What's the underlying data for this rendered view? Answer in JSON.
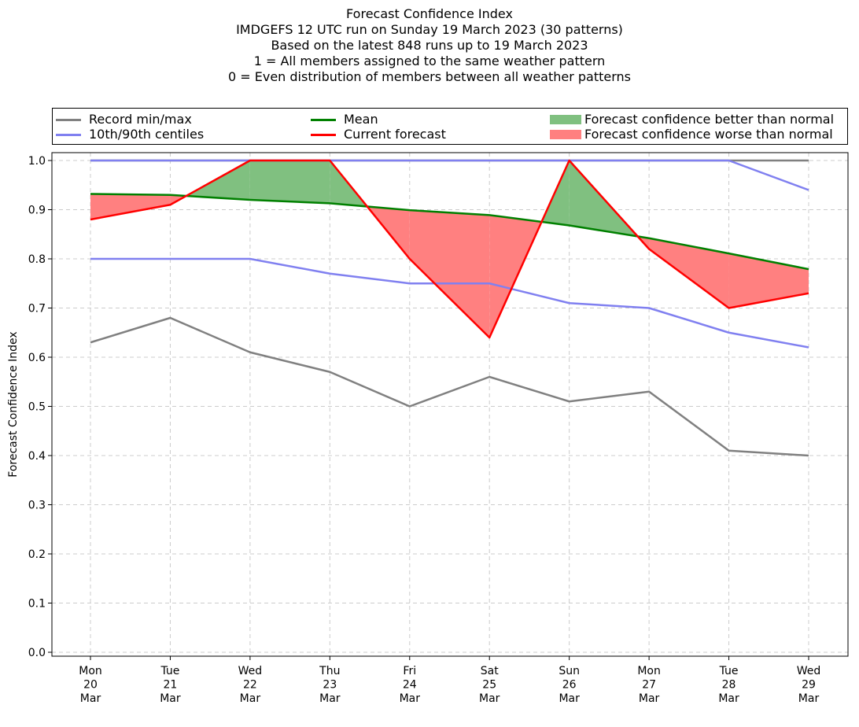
{
  "chart_data": {
    "type": "line",
    "title_lines": [
      "Forecast Confidence Index",
      "IMDGEFS 12 UTC run on Sunday 19 March 2023 (30 patterns)",
      "Based on the latest 848 runs up to 19 March 2023",
      "1 = All members assigned to the same weather pattern",
      "0 = Even distribution of members between all weather patterns"
    ],
    "ylabel": "Forecast Confidence Index",
    "ylim": [
      0.0,
      1.0
    ],
    "yticks": [
      "0.0",
      "0.1",
      "0.2",
      "0.3",
      "0.4",
      "0.5",
      "0.6",
      "0.7",
      "0.8",
      "0.9",
      "1.0"
    ],
    "grid": true,
    "legend_position": "top",
    "x_labels": [
      [
        "Mon",
        "20",
        "Mar"
      ],
      [
        "Tue",
        "21",
        "Mar"
      ],
      [
        "Wed",
        "22",
        "Mar"
      ],
      [
        "Thu",
        "23",
        "Mar"
      ],
      [
        "Fri",
        "24",
        "Mar"
      ],
      [
        "Sat",
        "25",
        "Mar"
      ],
      [
        "Sun",
        "26",
        "Mar"
      ],
      [
        "Mon",
        "27",
        "Mar"
      ],
      [
        "Tue",
        "28",
        "Mar"
      ],
      [
        "Wed",
        "29",
        "Mar"
      ]
    ],
    "series": {
      "record_min": [
        0.63,
        0.68,
        0.61,
        0.57,
        0.5,
        0.56,
        0.51,
        0.53,
        0.41,
        0.4
      ],
      "record_max": [
        1.0,
        1.0,
        1.0,
        1.0,
        1.0,
        1.0,
        1.0,
        1.0,
        1.0,
        1.0
      ],
      "centile_10": [
        0.8,
        0.8,
        0.8,
        0.77,
        0.75,
        0.75,
        0.71,
        0.7,
        0.65,
        0.62
      ],
      "centile_90": [
        1.0,
        1.0,
        1.0,
        1.0,
        1.0,
        1.0,
        1.0,
        1.0,
        1.0,
        0.94
      ],
      "mean": [
        0.932,
        0.93,
        0.92,
        0.913,
        0.899,
        0.889,
        0.868,
        0.842,
        0.811,
        0.779
      ],
      "current": [
        0.88,
        0.91,
        1.0,
        1.0,
        0.8,
        0.64,
        1.0,
        0.82,
        0.7,
        0.73
      ]
    },
    "legend": {
      "record": "Record min/max",
      "centiles": "10th/90th centiles",
      "mean": "Mean",
      "current": "Current forecast",
      "better": "Forecast confidence better than normal",
      "worse": "Forecast confidence worse than normal"
    },
    "colors": {
      "record": "#808080",
      "centiles": "#8080f0",
      "mean": "#008000",
      "current": "#ff0000",
      "better": "#80c080",
      "worse": "#ff8080"
    }
  }
}
